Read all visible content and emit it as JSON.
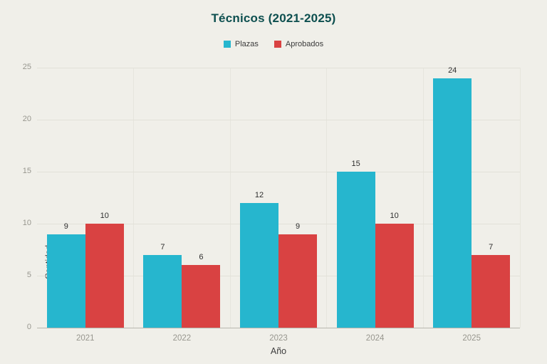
{
  "chart_data": {
    "type": "bar",
    "title": "Técnicos (2021-2025)",
    "xlabel": "Año",
    "ylabel": "Cantidad",
    "categories": [
      "2021",
      "2022",
      "2023",
      "2024",
      "2025"
    ],
    "series": [
      {
        "name": "Plazas",
        "color": "#26b6ce",
        "values": [
          9,
          7,
          12,
          15,
          24
        ]
      },
      {
        "name": "Aprobados",
        "color": "#d94242",
        "values": [
          10,
          6,
          9,
          10,
          7
        ]
      }
    ],
    "ylim": [
      0,
      25
    ],
    "yticks": [
      0,
      5,
      10,
      15,
      20,
      25
    ],
    "grid": true,
    "legend_position": "top",
    "background": "#f0efe9",
    "value_labels": true
  }
}
